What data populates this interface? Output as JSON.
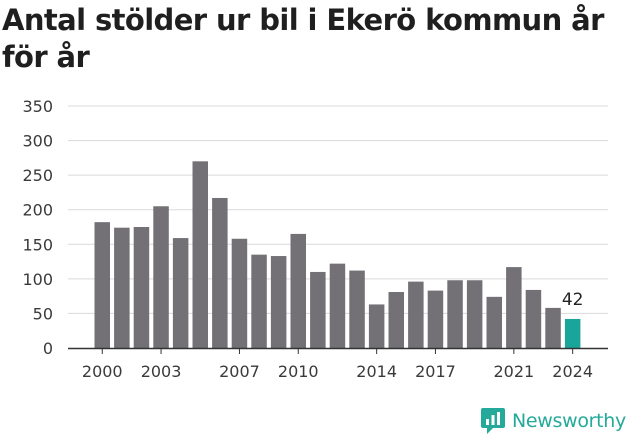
{
  "title": "Antal stölder ur bil i Ekerö kommun år för år",
  "brand": {
    "name": "Newsworthy",
    "icon": "newsworthy-logo-icon"
  },
  "colors": {
    "bar": "#737176",
    "highlight": "#1aa59a",
    "grid": "#d9d9d9",
    "axis": "#333333",
    "brand": "#24a99a"
  },
  "chart_data": {
    "type": "bar",
    "title": "Antal stölder ur bil i Ekerö kommun år för år",
    "xlabel": "",
    "ylabel": "",
    "x": [
      2000,
      2001,
      2002,
      2003,
      2004,
      2005,
      2006,
      2007,
      2008,
      2009,
      2010,
      2011,
      2012,
      2013,
      2014,
      2015,
      2016,
      2017,
      2018,
      2019,
      2020,
      2021,
      2022,
      2023,
      2024
    ],
    "values": [
      182,
      174,
      175,
      205,
      159,
      270,
      217,
      158,
      135,
      133,
      165,
      110,
      122,
      112,
      63,
      81,
      96,
      83,
      98,
      98,
      74,
      117,
      84,
      58,
      42
    ],
    "x_tick_labels": [
      "2000",
      "2003",
      "2007",
      "2010",
      "2014",
      "2017",
      "2021",
      "2024"
    ],
    "y_ticks": [
      0,
      50,
      100,
      150,
      200,
      250,
      300,
      350
    ],
    "ylim": [
      0,
      350
    ],
    "grid": true,
    "highlight": {
      "year": 2024,
      "label": "42"
    }
  }
}
